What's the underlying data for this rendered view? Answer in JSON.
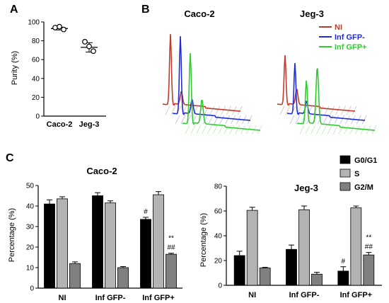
{
  "panels": {
    "a": "A",
    "b": "B",
    "c": "C"
  },
  "chart_data": [
    {
      "id": "purity",
      "type": "scatter",
      "ylabel": "Purity (%)",
      "ylim": [
        0,
        100
      ],
      "yticks": [
        0,
        20,
        40,
        60,
        80,
        100
      ],
      "categories": [
        "Caco-2",
        "Jeg-3"
      ],
      "points": [
        [
          94,
          92,
          95
        ],
        [
          79,
          69,
          74
        ]
      ],
      "mean": [
        93,
        73
      ],
      "sd": [
        1.5,
        5
      ]
    },
    {
      "id": "histograms",
      "type": "line",
      "panel_titles": [
        "Caco-2",
        "Jeg-3"
      ],
      "series": [
        {
          "name": "NI",
          "color": "#c0392b"
        },
        {
          "name": "Inf GFP-",
          "color": "#1f2bd6"
        },
        {
          "name": "Inf GFP+",
          "color": "#2ecc2e"
        }
      ]
    },
    {
      "id": "caco2-cycle",
      "type": "bar",
      "title": "Caco-2",
      "ylabel": "Percentage (%)",
      "ylim": [
        0,
        50
      ],
      "yticks": [
        0,
        10,
        20,
        30,
        40,
        50
      ],
      "categories": [
        "NI",
        "Inf GFP-",
        "Inf GFP+"
      ],
      "series": [
        {
          "name": "G0/G1",
          "values": [
            41,
            45,
            33.5
          ],
          "err": [
            2,
            1.5,
            1
          ]
        },
        {
          "name": "S",
          "values": [
            43.5,
            41.5,
            45.5
          ],
          "err": [
            1,
            1,
            1.5
          ]
        },
        {
          "name": "G2/M",
          "values": [
            12,
            10,
            16.5
          ],
          "err": [
            0.8,
            0.5,
            0.5
          ]
        }
      ],
      "annotations": [
        {
          "category": 2,
          "series": 0,
          "text": "#"
        },
        {
          "category": 2,
          "series": 2,
          "text": "##"
        },
        {
          "category": 2,
          "series": 2,
          "text": "**"
        }
      ]
    },
    {
      "id": "jeg3-cycle",
      "type": "bar",
      "title": "Jeg-3",
      "ylabel": "Percentage (%)",
      "ylim": [
        0,
        80
      ],
      "yticks": [
        0,
        20,
        40,
        60,
        80
      ],
      "categories": [
        "NI",
        "Inf GFP-",
        "Inf GFP+"
      ],
      "series": [
        {
          "name": "G0/G1",
          "values": [
            24,
            29,
            11.5
          ],
          "err": [
            3.5,
            3.5,
            3.5
          ]
        },
        {
          "name": "S",
          "values": [
            60.5,
            61,
            62.5
          ],
          "err": [
            2.5,
            3,
            1.5
          ]
        },
        {
          "name": "G2/M",
          "values": [
            14,
            9,
            24.5
          ],
          "err": [
            0.5,
            1.5,
            2
          ]
        }
      ],
      "annotations": [
        {
          "category": 2,
          "series": 0,
          "text": "#"
        },
        {
          "category": 2,
          "series": 2,
          "text": "##"
        },
        {
          "category": 2,
          "series": 2,
          "text": "**"
        }
      ]
    }
  ],
  "legend": {
    "items": [
      {
        "label": "G0/G1",
        "color": "#000000"
      },
      {
        "label": "S",
        "color": "#b3b3b3"
      },
      {
        "label": "G2/M",
        "color": "#808080"
      }
    ]
  }
}
